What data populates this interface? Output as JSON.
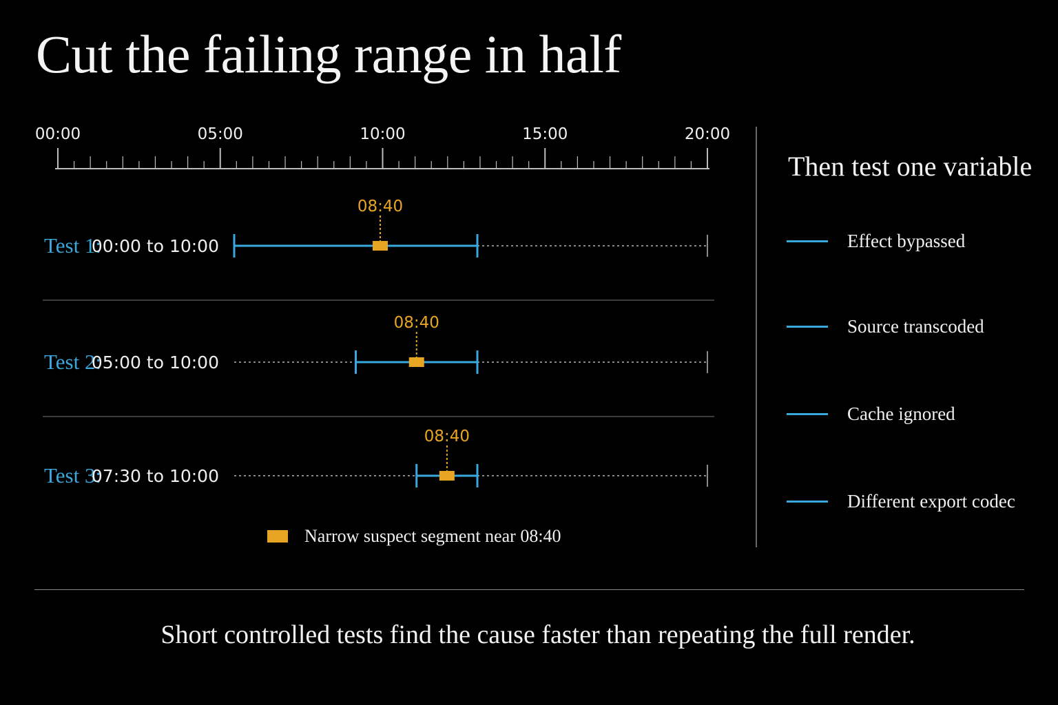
{
  "title": "Cut the failing range in half",
  "timeline": {
    "ticks": [
      "00:00",
      "05:00",
      "10:00",
      "15:00",
      "20:00"
    ],
    "tick_minutes": [
      0,
      5,
      10,
      15,
      20
    ],
    "range_minutes": [
      0,
      20
    ],
    "minor_tick_step_minutes": 0.5
  },
  "tests": [
    {
      "label": "Test 1:",
      "range": "00:00 to 10:00",
      "start_min": 0,
      "end_min": 10,
      "marker": "08:40",
      "marker_min": 8.667
    },
    {
      "label": "Test 2:",
      "range": "05:00 to 10:00",
      "start_min": 5,
      "end_min": 10,
      "marker": "08:40",
      "marker_min": 8.667
    },
    {
      "label": "Test 3:",
      "range": "07:30 to 10:00",
      "start_min": 7.5,
      "end_min": 10,
      "marker": "08:40",
      "marker_min": 8.667
    }
  ],
  "legend": {
    "label": "Narrow suspect segment near 08:40"
  },
  "side": {
    "title": "Then test one variable",
    "variables": [
      "Effect bypassed",
      "Source transcoded",
      "Cache ignored",
      "Different export codec"
    ]
  },
  "footer": "Short controlled tests find the cause faster than repeating the full render.",
  "colors": {
    "accent": "#3aa8dc",
    "marker": "#e8a524",
    "muted": "#8a8a8a",
    "background": "#000000",
    "text": "#f2f2f2"
  }
}
